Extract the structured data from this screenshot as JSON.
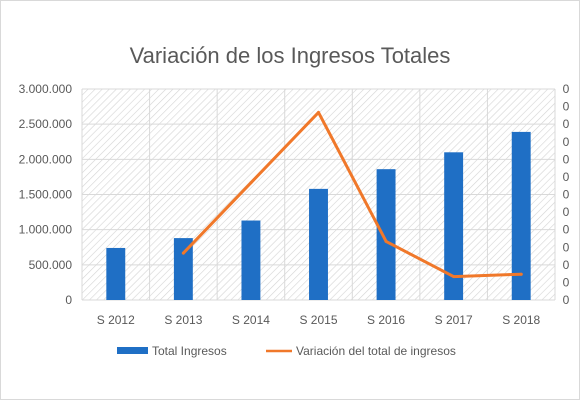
{
  "chart_data": {
    "type": "bar",
    "title": "Variación de los Ingresos Totales",
    "categories": [
      "S 2012",
      "S 2013",
      "S 2014",
      "S 2015",
      "S 2016",
      "S 2017",
      "S 2018"
    ],
    "y_ticks": [
      "0",
      "500.000",
      "1.000.000",
      "1.500.000",
      "2.000.000",
      "2.500.000",
      "3.000.000"
    ],
    "y2_ticks": [
      "0",
      "0",
      "0",
      "0",
      "0",
      "0",
      "0",
      "0",
      "0",
      "0",
      "0",
      "0",
      "0"
    ],
    "ylim": [
      0,
      3000000
    ],
    "grid": true,
    "legend_position": "bottom",
    "series": [
      {
        "name": "Total Ingresos",
        "type": "bar",
        "axis": "primary",
        "color": "#1F6FC5",
        "values": [
          740000,
          880000,
          1130000,
          1580000,
          1860000,
          2100000,
          2390000
        ]
      },
      {
        "name": "Variación del total de ingresos",
        "type": "line",
        "axis": "secondary",
        "color": "#F0782A",
        "values": [
          null,
          0.2,
          0.5,
          0.8,
          0.25,
          0.1,
          0.11
        ]
      }
    ],
    "y2lim": [
      0,
      0.9
    ]
  }
}
